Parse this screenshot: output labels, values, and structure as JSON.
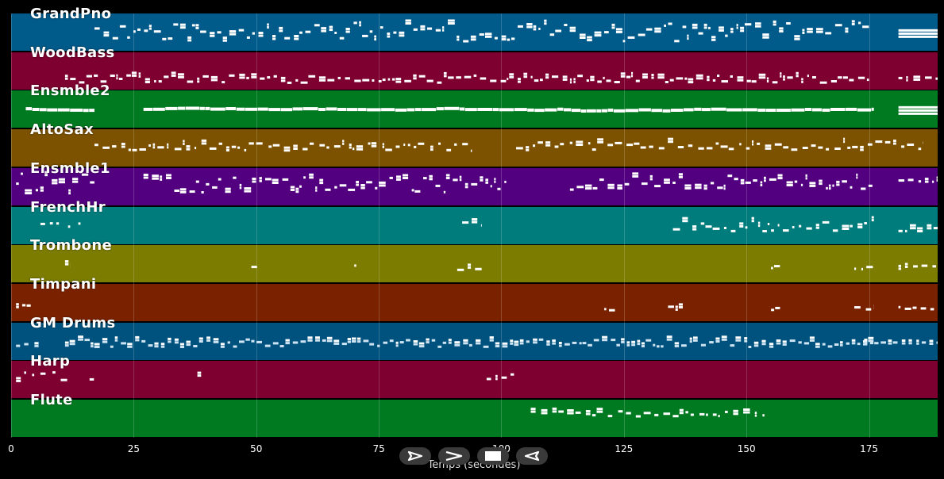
{
  "tracks": [
    {
      "name": "GrandPno",
      "color": "#005a8a"
    },
    {
      "name": "WoodBass",
      "color": "#7e0030"
    },
    {
      "name": "Ensmble2",
      "color": "#007a20"
    },
    {
      "name": "AltoSax",
      "color": "#7c5200"
    },
    {
      "name": "Ensmble1",
      "color": "#520080"
    },
    {
      "name": "FrenchHr",
      "color": "#007c7c"
    },
    {
      "name": "Trombone",
      "color": "#7c7c00"
    },
    {
      "name": "Timpani",
      "color": "#7a2200"
    },
    {
      "name": "GM Drums",
      "color": "#00527e"
    },
    {
      "name": "Harp",
      "color": "#7e0030"
    },
    {
      "name": "Flute",
      "color": "#007a20"
    }
  ],
  "xaxis": {
    "label": "Temps (secondes)",
    "ticks": [
      "0",
      "25",
      "50",
      "75",
      "100",
      "125",
      "150",
      "175"
    ],
    "tick_values": [
      0,
      25,
      50,
      75,
      100,
      125,
      150,
      175
    ],
    "range": [
      0,
      189
    ]
  },
  "controls": [
    {
      "icon": "play-icon"
    },
    {
      "icon": "forward-icon"
    },
    {
      "icon": "stop-icon"
    },
    {
      "icon": "rewind-icon"
    }
  ]
}
